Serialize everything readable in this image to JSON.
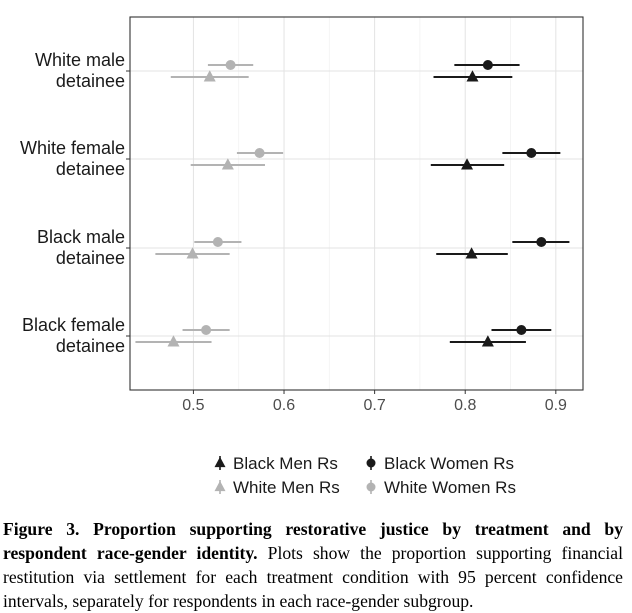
{
  "chart_data": {
    "type": "scatter",
    "orientation": "horizontal-dot-whisker",
    "categories": [
      [
        "White male",
        "detainee"
      ],
      [
        "White female",
        "detainee"
      ],
      [
        "Black male",
        "detainee"
      ],
      [
        "Black female",
        "detainee"
      ]
    ],
    "xlim": [
      0.43,
      0.93
    ],
    "xticks": [
      {
        "value": 0.5,
        "label": "0.5"
      },
      {
        "value": 0.6,
        "label": "0.6"
      },
      {
        "value": 0.7,
        "label": "0.7"
      },
      {
        "value": 0.8,
        "label": "0.8"
      },
      {
        "value": 0.9,
        "label": "0.9"
      }
    ],
    "grid": true,
    "legend_position": "bottom",
    "series": [
      {
        "name": "Black Men Rs",
        "marker": "triangle",
        "color": "#1a1a1a",
        "offset": "lower",
        "points": [
          {
            "est": 0.808,
            "lo": 0.765,
            "hi": 0.852
          },
          {
            "est": 0.802,
            "lo": 0.762,
            "hi": 0.843
          },
          {
            "est": 0.807,
            "lo": 0.768,
            "hi": 0.847
          },
          {
            "est": 0.825,
            "lo": 0.783,
            "hi": 0.867
          }
        ]
      },
      {
        "name": "Black Women Rs",
        "marker": "circle",
        "color": "#1a1a1a",
        "offset": "upper",
        "points": [
          {
            "est": 0.825,
            "lo": 0.788,
            "hi": 0.86
          },
          {
            "est": 0.873,
            "lo": 0.841,
            "hi": 0.905
          },
          {
            "est": 0.884,
            "lo": 0.852,
            "hi": 0.915
          },
          {
            "est": 0.862,
            "lo": 0.829,
            "hi": 0.895
          }
        ]
      },
      {
        "name": "White Men Rs",
        "marker": "triangle",
        "color": "#b3b3b3",
        "offset": "lower",
        "points": [
          {
            "est": 0.518,
            "lo": 0.475,
            "hi": 0.561
          },
          {
            "est": 0.538,
            "lo": 0.497,
            "hi": 0.579
          },
          {
            "est": 0.499,
            "lo": 0.458,
            "hi": 0.54
          },
          {
            "est": 0.478,
            "lo": 0.436,
            "hi": 0.52
          }
        ]
      },
      {
        "name": "White Women Rs",
        "marker": "circle",
        "color": "#b3b3b3",
        "offset": "upper",
        "points": [
          {
            "est": 0.541,
            "lo": 0.516,
            "hi": 0.566
          },
          {
            "est": 0.573,
            "lo": 0.548,
            "hi": 0.599
          },
          {
            "est": 0.527,
            "lo": 0.501,
            "hi": 0.553
          },
          {
            "est": 0.514,
            "lo": 0.488,
            "hi": 0.54
          }
        ]
      }
    ],
    "legend": [
      [
        "Black Men Rs",
        "Black Women Rs"
      ],
      [
        "White Men Rs",
        "White Women Rs"
      ]
    ]
  },
  "caption": {
    "label": "Figure 3. Proportion supporting restorative justice by treatment and by respondent race-gender identity.",
    "text": "Plots show the proportion supporting financial restitution via settlement for each treatment condition with 95 percent confidence intervals, separately for respondents in each race-gender subgroup."
  }
}
